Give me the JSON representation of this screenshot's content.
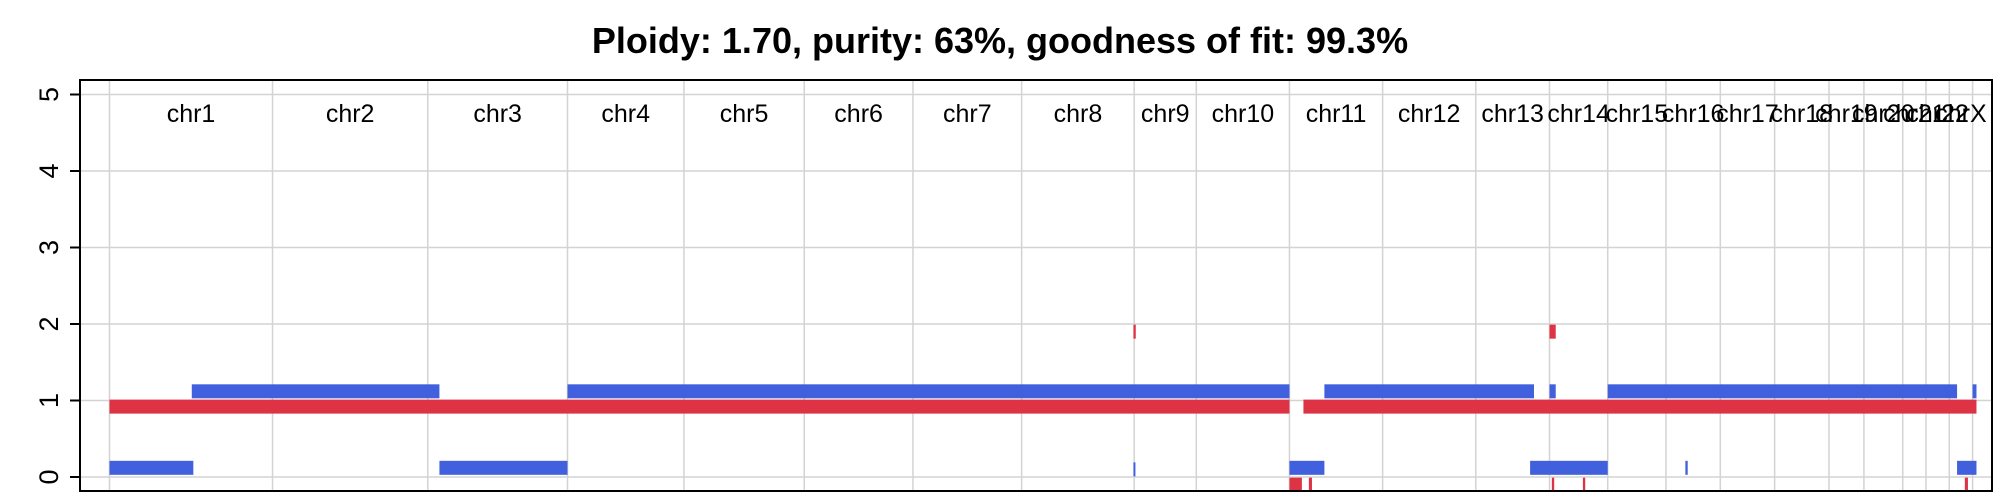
{
  "chart_data": {
    "type": "segment-plot",
    "title": "Ploidy: 1.70, purity: 63%, goodness of fit: 99.3%",
    "ylim": [
      0,
      5
    ],
    "yticks": [
      "0",
      "1",
      "2",
      "3",
      "4",
      "5"
    ],
    "grid": true,
    "x_domain": [
      -0.38,
      24.25
    ],
    "chromosomes": [
      {
        "name": "chr1",
        "start": 0.0,
        "end": 2.1
      },
      {
        "name": "chr2",
        "start": 2.1,
        "end": 4.1
      },
      {
        "name": "chr3",
        "start": 4.1,
        "end": 5.9
      },
      {
        "name": "chr4",
        "start": 5.9,
        "end": 7.4
      },
      {
        "name": "chr5",
        "start": 7.4,
        "end": 8.95
      },
      {
        "name": "chr6",
        "start": 8.95,
        "end": 10.35
      },
      {
        "name": "chr7",
        "start": 10.35,
        "end": 11.75
      },
      {
        "name": "chr8",
        "start": 11.75,
        "end": 13.2
      },
      {
        "name": "chr9",
        "start": 13.2,
        "end": 14.0
      },
      {
        "name": "chr10",
        "start": 14.0,
        "end": 15.2
      },
      {
        "name": "chr11",
        "start": 15.2,
        "end": 16.4
      },
      {
        "name": "chr12",
        "start": 16.4,
        "end": 17.6
      },
      {
        "name": "chr13",
        "start": 17.6,
        "end": 18.55
      },
      {
        "name": "chr14",
        "start": 18.55,
        "end": 19.3
      },
      {
        "name": "chr15",
        "start": 19.3,
        "end": 20.05
      },
      {
        "name": "chr16",
        "start": 20.05,
        "end": 20.75
      },
      {
        "name": "chr17",
        "start": 20.75,
        "end": 21.45
      },
      {
        "name": "chr18",
        "start": 21.45,
        "end": 22.15
      },
      {
        "name": "chr19",
        "start": 22.15,
        "end": 22.6
      },
      {
        "name": "chr20",
        "start": 22.6,
        "end": 23.1
      },
      {
        "name": "chr21",
        "start": 23.1,
        "end": 23.4
      },
      {
        "name": "chr22",
        "start": 23.4,
        "end": 23.7
      },
      {
        "name": "chrX",
        "start": 23.7,
        "end": 24.0
      }
    ],
    "series": [
      {
        "name": "",
        "color": "#4060dd",
        "segments": [
          {
            "x0": 0.0,
            "x1": 1.08,
            "y": 0.12
          },
          {
            "x0": 1.06,
            "x1": 4.25,
            "y": 1.12
          },
          {
            "x0": 4.25,
            "x1": 5.9,
            "y": 0.12
          },
          {
            "x0": 5.9,
            "x1": 15.2,
            "y": 1.12
          },
          {
            "x0": 13.19,
            "x1": 13.21,
            "y": 0.1
          },
          {
            "x0": 15.2,
            "x1": 15.65,
            "y": 0.12
          },
          {
            "x0": 15.65,
            "x1": 18.35,
            "y": 1.12
          },
          {
            "x0": 18.3,
            "x1": 18.55,
            "y": 0.12
          },
          {
            "x0": 18.55,
            "x1": 18.63,
            "y": 1.12
          },
          {
            "x0": 18.55,
            "x1": 19.3,
            "y": 0.12
          },
          {
            "x0": 19.3,
            "x1": 23.8,
            "y": 1.12
          },
          {
            "x0": 20.3,
            "x1": 20.33,
            "y": 0.12
          },
          {
            "x0": 23.8,
            "x1": 24.05,
            "y": 0.12
          },
          {
            "x0": 24.0,
            "x1": 24.05,
            "y": 1.12
          }
        ]
      },
      {
        "name": "",
        "color": "#dd3344",
        "segments": [
          {
            "x0": 0.0,
            "x1": 15.2,
            "y": 0.92
          },
          {
            "x0": 13.19,
            "x1": 13.22,
            "y": 1.9
          },
          {
            "x0": 15.2,
            "x1": 15.36,
            "y": -0.1
          },
          {
            "x0": 15.45,
            "x1": 15.49,
            "y": -0.1
          },
          {
            "x0": 15.38,
            "x1": 24.05,
            "y": 0.92
          },
          {
            "x0": 18.55,
            "x1": 18.63,
            "y": 1.9
          },
          {
            "x0": 18.58,
            "x1": 18.61,
            "y": -0.1
          },
          {
            "x0": 18.98,
            "x1": 19.01,
            "y": -0.1
          },
          {
            "x0": 23.9,
            "x1": 23.94,
            "y": -0.1
          }
        ]
      }
    ]
  }
}
